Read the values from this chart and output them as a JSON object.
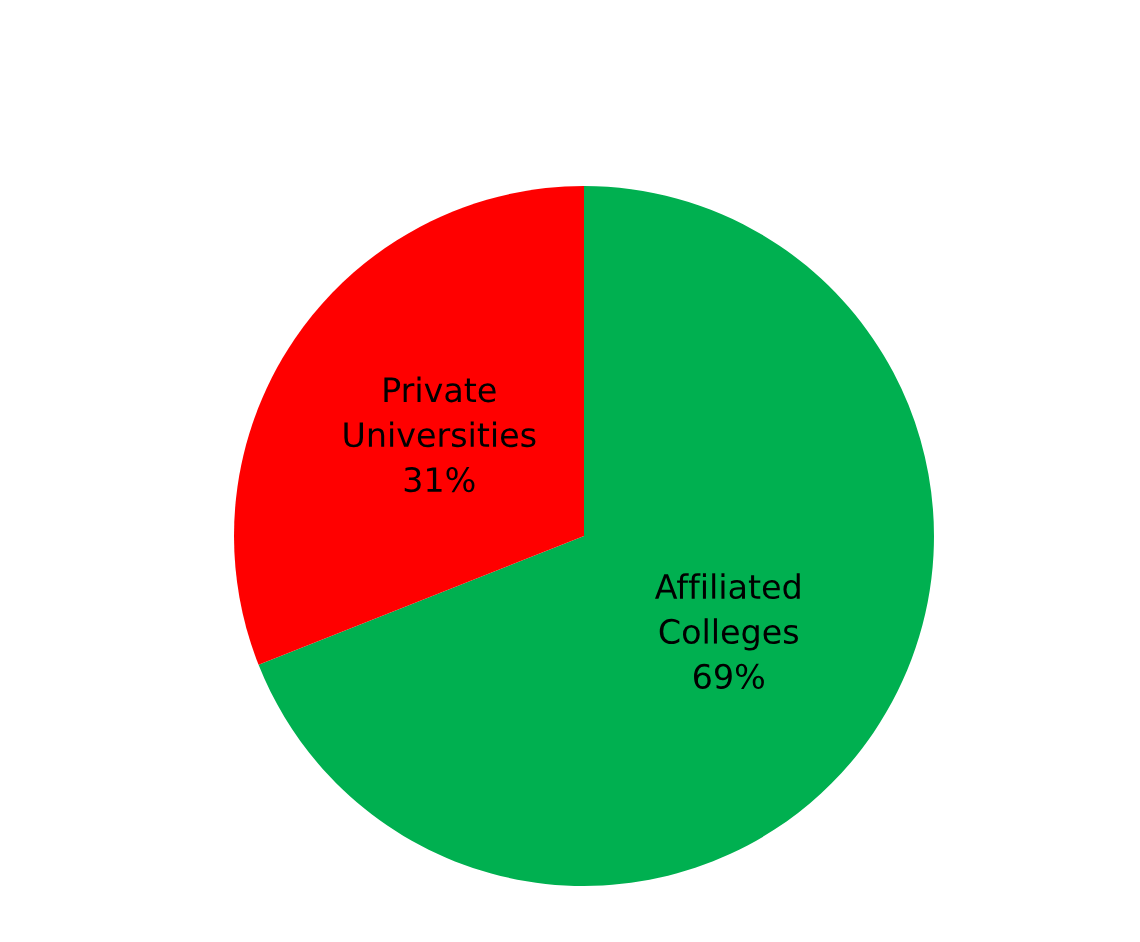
{
  "chart_data": {
    "type": "pie",
    "categories": [
      "Affiliated Colleges",
      "Private Universities"
    ],
    "values": [
      69,
      31
    ],
    "colors": [
      "#00b050",
      "#ff0000"
    ],
    "value_labels": [
      "69%",
      "31%"
    ],
    "legend": false
  }
}
